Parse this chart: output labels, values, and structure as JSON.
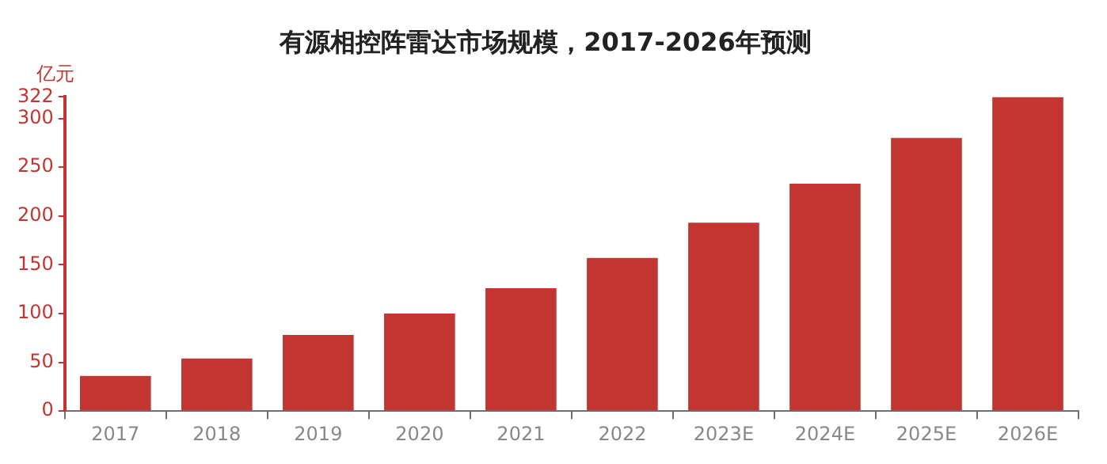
{
  "chart_data": {
    "type": "bar",
    "title": "有源相控阵雷达市场规模，2017-2026年预测",
    "ylabel": "亿元",
    "categories": [
      "2017",
      "2018",
      "2019",
      "2020",
      "2021",
      "2022",
      "2023E",
      "2024E",
      "2025E",
      "2026E"
    ],
    "values": [
      36,
      54,
      78,
      100,
      126,
      157,
      193,
      233,
      280,
      322
    ],
    "color": "#c23531",
    "ylim": [
      0,
      322
    ],
    "yticks": [
      0,
      50,
      100,
      150,
      200,
      250,
      300,
      322
    ],
    "grid": false,
    "legend": false
  }
}
